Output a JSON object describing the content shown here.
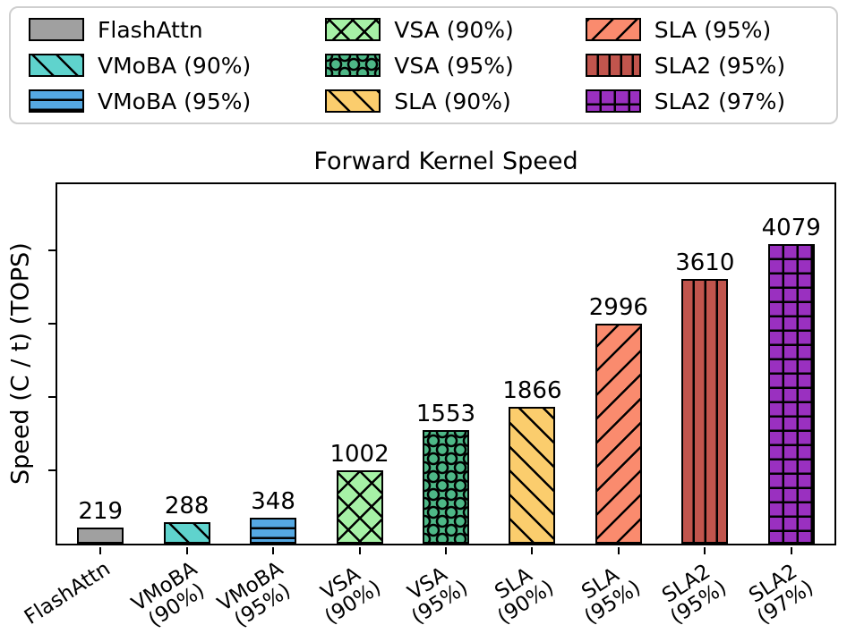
{
  "chart_data": {
    "type": "bar",
    "title": "Forward Kernel Speed",
    "xlabel": "",
    "ylabel": "Speed (C / t) (TOPS)",
    "ylim": [
      0,
      4900
    ],
    "yticks": [
      1000,
      2000,
      3000,
      4000
    ],
    "y_tick_labels_visible": false,
    "grid": false,
    "legend_position": "top",
    "legend_columns": 3,
    "series": [
      {
        "label": "FlashAttn",
        "tick_line1": "FlashAttn",
        "tick_line2": "",
        "value": 219,
        "color": "#a0a0a0",
        "hatch": "none"
      },
      {
        "label": "VMoBA (90%)",
        "tick_line1": "VMoBA",
        "tick_line2": "(90%)",
        "value": 288,
        "color": "#5fd3cd",
        "hatch": "/"
      },
      {
        "label": "VMoBA (95%)",
        "tick_line1": "VMoBA",
        "tick_line2": "(95%)",
        "value": 348,
        "color": "#55a8e2",
        "hatch": "-"
      },
      {
        "label": "VSA (90%)",
        "tick_line1": "VSA",
        "tick_line2": "(90%)",
        "value": 1002,
        "color": "#a6f1a6",
        "hatch": "x"
      },
      {
        "label": "VSA (95%)",
        "tick_line1": "VSA",
        "tick_line2": "(95%)",
        "value": 1553,
        "color": "#4eb887",
        "hatch": "o"
      },
      {
        "label": "SLA (90%)",
        "tick_line1": "SLA",
        "tick_line2": "(90%)",
        "value": 1866,
        "color": "#fbcd6d",
        "hatch": "/"
      },
      {
        "label": "SLA (95%)",
        "tick_line1": "SLA",
        "tick_line2": "(95%)",
        "value": 2996,
        "color": "#fa8b6e",
        "hatch": "\\"
      },
      {
        "label": "SLA2 (95%)",
        "tick_line1": "SLA2",
        "tick_line2": "(95%)",
        "value": 3610,
        "color": "#c1554d",
        "hatch": "|"
      },
      {
        "label": "SLA2 (97%)",
        "tick_line1": "SLA2",
        "tick_line2": "(97%)",
        "value": 4079,
        "color": "#9a30c0",
        "hatch": "+"
      }
    ]
  }
}
